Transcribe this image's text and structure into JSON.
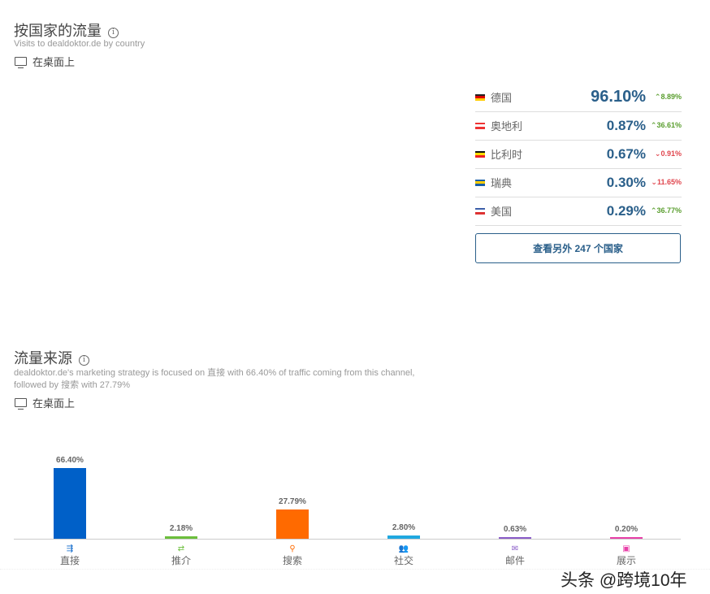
{
  "country_section": {
    "title": "按国家的流量",
    "subtitle": "Visits to dealdoktor.de by country",
    "device": "在桌面上",
    "countries": [
      {
        "name": "德国",
        "share": "96.10%",
        "change": "8.89%",
        "dir": "up",
        "flag": [
          "#222",
          "#d00",
          "#fc0"
        ]
      },
      {
        "name": "奥地利",
        "share": "0.87%",
        "change": "36.61%",
        "dir": "up",
        "flag": [
          "#e33",
          "#fff",
          "#e33"
        ]
      },
      {
        "name": "比利时",
        "share": "0.67%",
        "change": "0.91%",
        "dir": "down",
        "flag": [
          "#111",
          "#fd0",
          "#e22"
        ]
      },
      {
        "name": "瑞典",
        "share": "0.30%",
        "change": "11.65%",
        "dir": "down",
        "flag": [
          "#1a5fa8",
          "#fc0",
          "#1a5fa8"
        ]
      },
      {
        "name": "美国",
        "share": "0.29%",
        "change": "36.77%",
        "dir": "up",
        "flag": [
          "#3c5fa8",
          "#fff",
          "#d33"
        ]
      }
    ],
    "more_button": "查看另外 247 个国家"
  },
  "source_section": {
    "title": "流量来源",
    "description": "dealdoktor.de's marketing strategy is focused on 直接 with 66.40% of traffic coming from this channel, followed by 搜索 with 27.79%",
    "device": "在桌面上"
  },
  "chart_data": {
    "type": "bar",
    "categories": [
      "直接",
      "推介",
      "搜索",
      "社交",
      "邮件",
      "展示"
    ],
    "values": [
      66.4,
      2.18,
      27.79,
      2.8,
      0.63,
      0.2
    ],
    "labels": [
      "66.40%",
      "2.18%",
      "27.79%",
      "2.80%",
      "0.63%",
      "0.20%"
    ],
    "colors": [
      "#0060c8",
      "#6cbf3c",
      "#ff6a00",
      "#20a8e0",
      "#8a5cc8",
      "#e83fa8"
    ],
    "icons": [
      "direct-icon",
      "referral-icon",
      "search-icon",
      "social-icon",
      "mail-icon",
      "display-icon"
    ],
    "ylim": [
      0,
      70
    ]
  },
  "watermark": "头条 @跨境10年"
}
